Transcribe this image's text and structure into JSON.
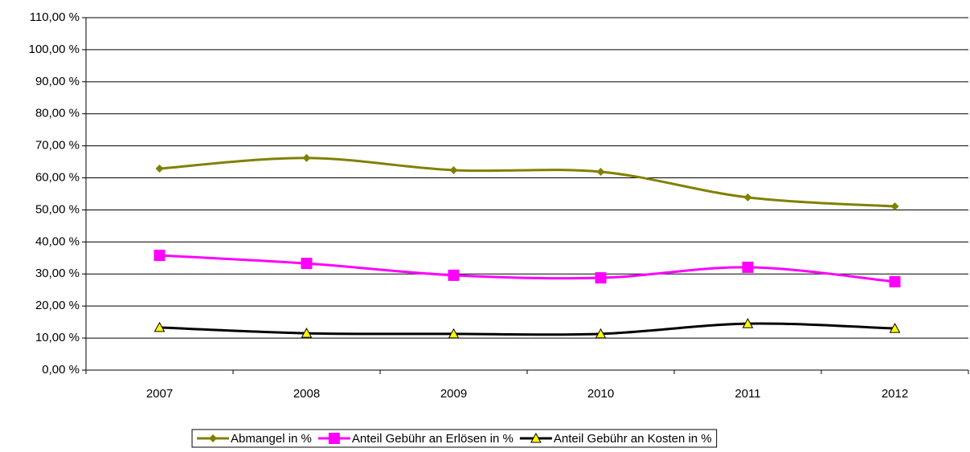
{
  "chart_data": {
    "type": "line",
    "categories": [
      "2007",
      "2008",
      "2009",
      "2010",
      "2011",
      "2012"
    ],
    "series": [
      {
        "name": "Abmangel in %",
        "color": "#808000",
        "marker": "diamond",
        "values": [
          62.9,
          66.2,
          62.4,
          61.9,
          53.9,
          51.1
        ]
      },
      {
        "name": "Anteil Gebühr an Erlösen in %",
        "color": "#ff00ff",
        "marker": "square",
        "values": [
          35.8,
          33.3,
          29.6,
          28.8,
          32.1,
          27.6
        ]
      },
      {
        "name": "Anteil Gebühr an Kosten in %",
        "color": "#000000",
        "marker": "triangle",
        "values": [
          13.3,
          11.5,
          11.3,
          11.3,
          14.5,
          13.0
        ]
      }
    ],
    "ylim": [
      0,
      110
    ],
    "yticks": [
      {
        "value": 0,
        "label": "0,00 %"
      },
      {
        "value": 10,
        "label": "10,00 %"
      },
      {
        "value": 20,
        "label": "20,00 %"
      },
      {
        "value": 30,
        "label": "30,00 %"
      },
      {
        "value": 40,
        "label": "40,00 %"
      },
      {
        "value": 50,
        "label": "50,00 %"
      },
      {
        "value": 60,
        "label": "60,00 %"
      },
      {
        "value": 70,
        "label": "70,00 %"
      },
      {
        "value": 80,
        "label": "80,00 %"
      },
      {
        "value": 90,
        "label": "90,00 %"
      },
      {
        "value": 100,
        "label": "100,00 %"
      },
      {
        "value": 110,
        "label": "110,00 %"
      }
    ],
    "grid": true,
    "smooth": true,
    "legend": "bottom"
  }
}
